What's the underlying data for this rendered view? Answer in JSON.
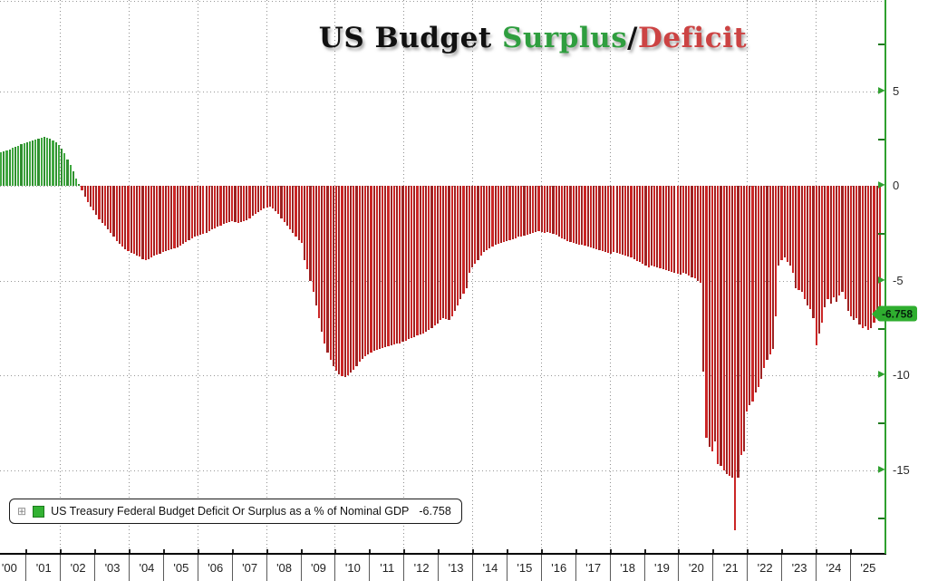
{
  "title": {
    "text_black": "US Budget",
    "text_surplus": "Surplus",
    "text_slash": "/",
    "text_deficit": "Deficit"
  },
  "legend": {
    "expand_icon": "⊞",
    "label": "US Treasury Federal Budget Deficit Or Surplus as a % of Nominal GDP",
    "value": "-6.758"
  },
  "y_axis": {
    "major_ticks": [
      5,
      0,
      -5,
      -10,
      -15
    ],
    "minor_ticks": [
      7.5,
      2.5,
      -2.5,
      -7.5,
      -12.5,
      -17.5
    ],
    "badge": {
      "text": "-6.758",
      "value": -6.758
    }
  },
  "x_axis": {
    "year_labels": [
      "'00",
      "'01",
      "'02",
      "'03",
      "'04",
      "'05",
      "'06",
      "'07",
      "'08",
      "'09",
      "'10",
      "'11",
      "'12",
      "'13",
      "'14",
      "'15",
      "'16",
      "'17",
      "'18",
      "'19",
      "'20",
      "'21",
      "'22",
      "'23",
      "'24",
      "'25"
    ]
  },
  "colors": {
    "surplus_bar": "#3fa83f",
    "surplus_bar_alt": "#2f8f2f",
    "deficit_bar": "#cb2626",
    "deficit_bar_alt": "#9e2222",
    "axis_green": "#2fa02f",
    "minor_tick": "#1f7a1f",
    "badge_bg": "#2fae2f",
    "title_surplus": "#2f9e3f",
    "title_deficit": "#cc4343",
    "legend_swatch": "#33b233"
  },
  "chart_data": {
    "type": "bar",
    "title": "US Budget Surplus/Deficit",
    "series_name": "US Treasury Federal Budget Deficit Or Surplus as a % of Nominal GDP",
    "units": "% of Nominal GDP",
    "frequency": "monthly",
    "x_start": "2000-01",
    "x_end": "2025-05",
    "last_value": -6.758,
    "ylim": [
      -19.4,
      9.8
    ],
    "y_gridlines": [
      10,
      5,
      0,
      -5,
      -10,
      -15
    ],
    "x_gridline_years": [
      2002,
      2004,
      2006,
      2008,
      2010,
      2012,
      2014,
      2016,
      2018,
      2020,
      2022,
      2024
    ],
    "legend_position": "bottom-left",
    "values": [
      1.75,
      1.8,
      1.85,
      1.9,
      2.0,
      2.05,
      2.1,
      2.2,
      2.25,
      2.3,
      2.35,
      2.4,
      2.45,
      2.5,
      2.55,
      2.6,
      2.55,
      2.5,
      2.4,
      2.3,
      2.15,
      1.95,
      1.7,
      1.4,
      1.1,
      0.75,
      0.4,
      0.1,
      -0.25,
      -0.55,
      -0.85,
      -1.1,
      -1.3,
      -1.55,
      -1.75,
      -1.95,
      -2.1,
      -2.3,
      -2.5,
      -2.7,
      -2.9,
      -3.05,
      -3.2,
      -3.35,
      -3.45,
      -3.55,
      -3.6,
      -3.7,
      -3.75,
      -3.85,
      -3.9,
      -3.85,
      -3.8,
      -3.7,
      -3.65,
      -3.6,
      -3.5,
      -3.45,
      -3.4,
      -3.35,
      -3.3,
      -3.25,
      -3.15,
      -3.05,
      -2.95,
      -2.85,
      -2.75,
      -2.7,
      -2.65,
      -2.6,
      -2.55,
      -2.5,
      -2.4,
      -2.3,
      -2.25,
      -2.15,
      -2.1,
      -2.0,
      -1.95,
      -1.9,
      -1.85,
      -1.9,
      -1.95,
      -1.9,
      -1.85,
      -1.8,
      -1.7,
      -1.6,
      -1.5,
      -1.4,
      -1.3,
      -1.2,
      -1.15,
      -1.1,
      -1.2,
      -1.35,
      -1.5,
      -1.7,
      -1.9,
      -2.1,
      -2.3,
      -2.5,
      -2.7,
      -2.85,
      -3.0,
      -3.9,
      -4.4,
      -5.0,
      -5.6,
      -6.3,
      -7.0,
      -7.7,
      -8.3,
      -8.8,
      -9.2,
      -9.5,
      -9.75,
      -9.95,
      -10.05,
      -10.1,
      -10.0,
      -9.85,
      -9.7,
      -9.5,
      -9.3,
      -9.15,
      -9.0,
      -8.9,
      -8.8,
      -8.7,
      -8.65,
      -8.6,
      -8.55,
      -8.5,
      -8.45,
      -8.4,
      -8.35,
      -8.3,
      -8.3,
      -8.25,
      -8.2,
      -8.1,
      -8.05,
      -8.0,
      -7.9,
      -7.85,
      -7.8,
      -7.7,
      -7.6,
      -7.5,
      -7.35,
      -7.25,
      -7.1,
      -7.0,
      -7.05,
      -7.1,
      -6.9,
      -6.6,
      -6.3,
      -6.0,
      -5.7,
      -5.4,
      -4.6,
      -4.3,
      -4.1,
      -3.9,
      -3.7,
      -3.5,
      -3.4,
      -3.3,
      -3.2,
      -3.1,
      -3.05,
      -3.0,
      -2.95,
      -2.9,
      -2.85,
      -2.8,
      -2.75,
      -2.7,
      -2.7,
      -2.65,
      -2.6,
      -2.55,
      -2.5,
      -2.45,
      -2.4,
      -2.45,
      -2.5,
      -2.45,
      -2.5,
      -2.55,
      -2.6,
      -2.7,
      -2.75,
      -2.8,
      -2.9,
      -2.95,
      -3.0,
      -3.05,
      -3.1,
      -3.1,
      -3.15,
      -3.2,
      -3.25,
      -3.3,
      -3.35,
      -3.4,
      -3.45,
      -3.5,
      -3.55,
      -3.6,
      -3.5,
      -3.55,
      -3.6,
      -3.65,
      -3.7,
      -3.75,
      -3.8,
      -3.85,
      -3.95,
      -4.0,
      -4.1,
      -4.2,
      -4.3,
      -4.2,
      -4.25,
      -4.3,
      -4.35,
      -4.4,
      -4.45,
      -4.5,
      -4.55,
      -4.6,
      -4.65,
      -4.7,
      -4.6,
      -4.65,
      -4.75,
      -4.85,
      -4.9,
      -5.0,
      -5.1,
      -9.8,
      -13.3,
      -13.8,
      -14.0,
      -13.5,
      -14.7,
      -14.8,
      -15.0,
      -15.2,
      -15.3,
      -15.4,
      -18.2,
      -15.4,
      -14.2,
      -14.0,
      -11.9,
      -11.6,
      -11.4,
      -10.9,
      -10.6,
      -10.2,
      -9.6,
      -9.2,
      -8.9,
      -8.6,
      -6.9,
      -4.2,
      -3.9,
      -3.8,
      -4.0,
      -4.2,
      -4.6,
      -5.4,
      -5.5,
      -5.6,
      -6.0,
      -6.3,
      -6.5,
      -7.0,
      -8.4,
      -7.8,
      -7.2,
      -6.4,
      -6.0,
      -6.2,
      -5.9,
      -6.1,
      -5.8,
      -5.6,
      -6.0,
      -6.6,
      -6.9,
      -7.1,
      -7.0,
      -7.3,
      -7.5,
      -7.4,
      -7.6,
      -7.5,
      -7.2,
      -6.9,
      -6.758
    ]
  }
}
